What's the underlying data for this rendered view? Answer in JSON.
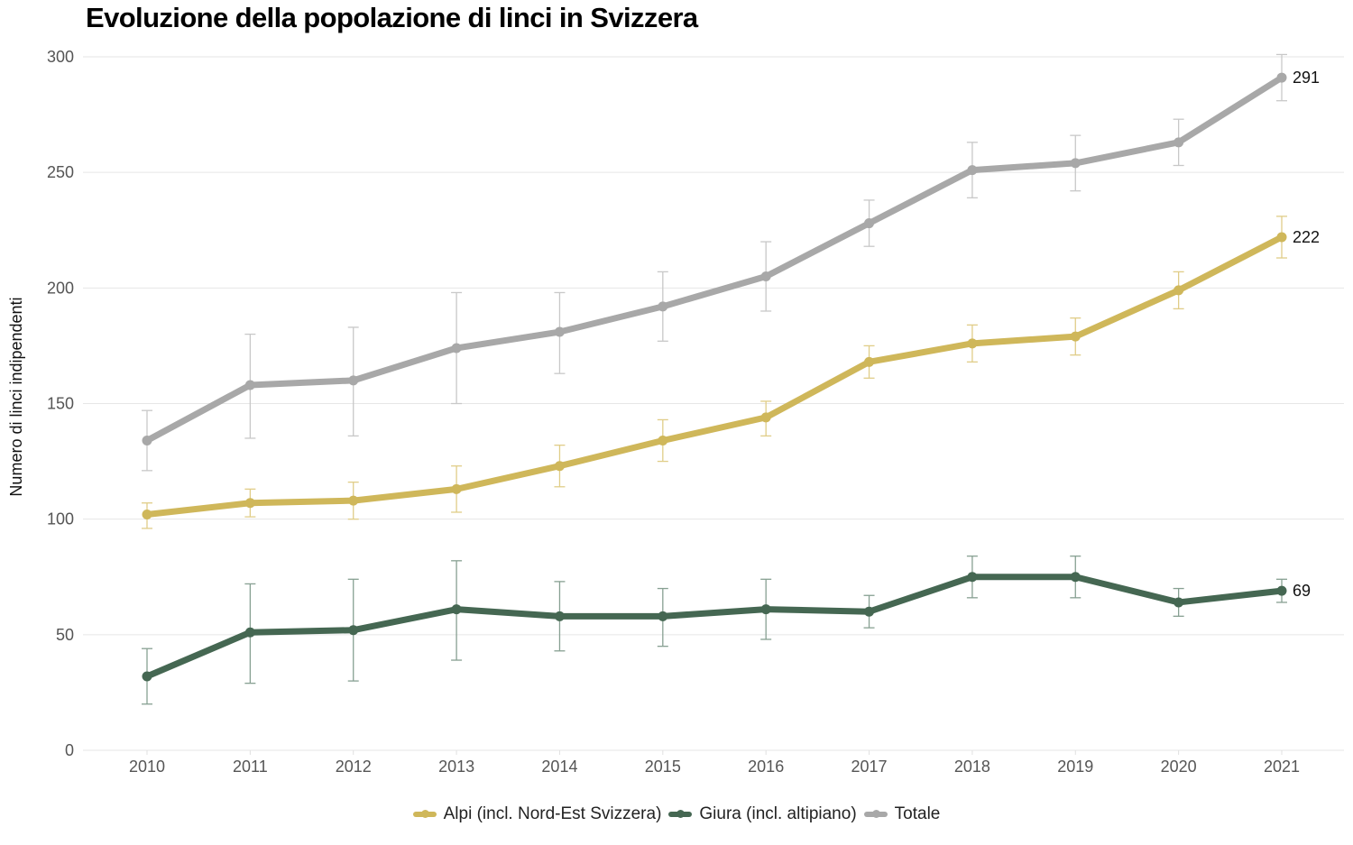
{
  "chart_data": {
    "type": "line",
    "title": "Evoluzione della popolazione di linci in Svizzera",
    "xlabel": "",
    "ylabel": "Numero di linci indipendenti",
    "ylim": [
      0,
      300
    ],
    "yticks": [
      "0",
      "50",
      "100",
      "150",
      "200",
      "250",
      "300"
    ],
    "ytick_values": [
      0,
      50,
      100,
      150,
      200,
      250,
      300
    ],
    "x": [
      "2010",
      "2011",
      "2012",
      "2013",
      "2014",
      "2015",
      "2016",
      "2017",
      "2018",
      "2019",
      "2020",
      "2021"
    ],
    "grid": true,
    "legend_position": "bottom-center",
    "series": [
      {
        "name": "Totale",
        "color": "#a8a8a8",
        "error_color": "#c8c8c8",
        "values": [
          134,
          158,
          160,
          174,
          181,
          192,
          205,
          228,
          251,
          254,
          263,
          291
        ],
        "error_low": [
          121,
          135,
          136,
          150,
          163,
          177,
          190,
          218,
          239,
          242,
          253,
          281
        ],
        "error_high": [
          147,
          180,
          183,
          198,
          198,
          207,
          220,
          238,
          263,
          266,
          273,
          301
        ],
        "end_label": "291"
      },
      {
        "name": "Alpi (incl. Nord-Est Svizzera)",
        "color": "#cfb75a",
        "error_color": "#e0cd88",
        "values": [
          102,
          107,
          108,
          113,
          123,
          134,
          144,
          168,
          176,
          179,
          199,
          222
        ],
        "error_low": [
          96,
          101,
          100,
          103,
          114,
          125,
          136,
          161,
          168,
          171,
          191,
          213
        ],
        "error_high": [
          107,
          113,
          116,
          123,
          132,
          143,
          151,
          175,
          184,
          187,
          207,
          231
        ],
        "end_label": "222"
      },
      {
        "name": "Giura (incl. altipiano)",
        "color": "#456752",
        "error_color": "#87a092",
        "values": [
          32,
          51,
          52,
          61,
          58,
          58,
          61,
          60,
          75,
          75,
          64,
          69
        ],
        "error_low": [
          20,
          29,
          30,
          39,
          43,
          45,
          48,
          53,
          66,
          66,
          58,
          64
        ],
        "error_high": [
          44,
          72,
          74,
          82,
          73,
          70,
          74,
          67,
          84,
          84,
          70,
          74
        ],
        "end_label": "69"
      }
    ],
    "legend": [
      {
        "label": "Alpi (incl. Nord-Est Svizzera)",
        "color": "#cfb75a"
      },
      {
        "label": "Giura (incl. altipiano)",
        "color": "#456752"
      },
      {
        "label": "Totale",
        "color": "#a8a8a8"
      }
    ]
  }
}
